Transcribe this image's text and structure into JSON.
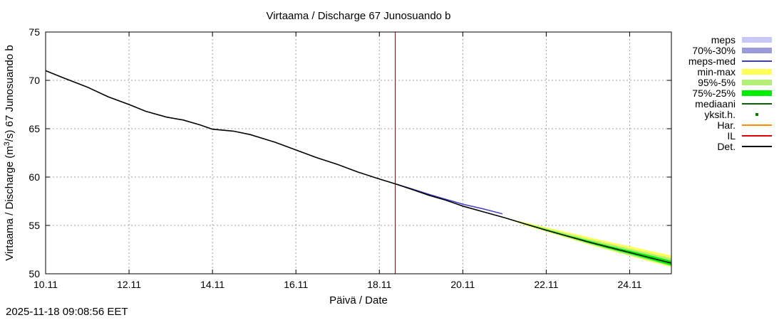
{
  "chart_data": {
    "type": "line",
    "title": "Virtaama / Discharge  67 Junosuando b",
    "xlabel": "Päivä / Date",
    "ylabel_main": "Virtaama / Discharge (m",
    "ylabel_sup": "3",
    "ylabel_rest": "/s)  67 Junosuando b",
    "x_range_days": [
      0,
      15
    ],
    "ylim": [
      50,
      75
    ],
    "grid": true,
    "x_ticks": [
      {
        "day": 0,
        "label": "10.11"
      },
      {
        "day": 2,
        "label": "12.11"
      },
      {
        "day": 4,
        "label": "14.11"
      },
      {
        "day": 6,
        "label": "16.11"
      },
      {
        "day": 8,
        "label": "18.11"
      },
      {
        "day": 10,
        "label": "20.11"
      },
      {
        "day": 12,
        "label": "22.11"
      },
      {
        "day": 14,
        "label": "24.11"
      }
    ],
    "y_ticks": [
      50,
      55,
      60,
      65,
      70,
      75
    ],
    "issue_day": 8.38,
    "observed": {
      "name": "Det.",
      "x": [
        0,
        0.4,
        1.0,
        1.5,
        2.0,
        2.4,
        2.9,
        3.3,
        3.7,
        4.0,
        4.5,
        4.9,
        5.5,
        6.0,
        6.5,
        7.0,
        7.5,
        8.0,
        8.38,
        8.8,
        9.2,
        9.6,
        10.0,
        10.5,
        11.0
      ],
      "y": [
        71.0,
        70.3,
        69.3,
        68.3,
        67.5,
        66.8,
        66.2,
        65.9,
        65.4,
        64.95,
        64.75,
        64.4,
        63.6,
        62.8,
        62.0,
        61.3,
        60.5,
        59.8,
        59.3,
        58.7,
        58.1,
        57.6,
        57.0,
        56.4,
        55.8
      ]
    },
    "meps_med": {
      "name": "meps-med",
      "x": [
        8.38,
        8.8,
        9.2,
        9.6,
        10.0,
        10.5,
        10.95
      ],
      "y": [
        59.3,
        58.75,
        58.2,
        57.7,
        57.2,
        56.7,
        56.2
      ]
    },
    "ensemble": {
      "x": [
        11.0,
        11.5,
        12.0,
        12.5,
        13.0,
        13.5,
        14.0,
        14.5,
        15.0
      ],
      "median": [
        55.8,
        55.15,
        54.5,
        53.9,
        53.3,
        52.75,
        52.2,
        51.65,
        51.1
      ],
      "q75": [
        55.8,
        55.2,
        54.6,
        54.0,
        53.45,
        52.9,
        52.4,
        51.9,
        51.35
      ],
      "q25": [
        55.8,
        55.1,
        54.45,
        53.85,
        53.2,
        52.6,
        52.05,
        51.45,
        50.85
      ],
      "p95": [
        55.8,
        55.25,
        54.7,
        54.15,
        53.6,
        53.1,
        52.6,
        52.1,
        51.6
      ],
      "p05": [
        55.8,
        55.05,
        54.4,
        53.75,
        53.1,
        52.5,
        51.9,
        51.35,
        50.75
      ],
      "max": [
        55.8,
        55.3,
        54.8,
        54.3,
        53.8,
        53.3,
        52.85,
        52.35,
        51.9
      ],
      "min": [
        55.8,
        55.0,
        54.35,
        53.7,
        53.05,
        52.45,
        51.85,
        51.25,
        50.7
      ]
    },
    "legend": [
      {
        "label": "meps",
        "kind": "band",
        "color": "#c8c8f8"
      },
      {
        "label": "70%-30%",
        "kind": "band",
        "color": "#9b9bdc"
      },
      {
        "label": "meps-med",
        "kind": "line",
        "color": "#3c3cc8"
      },
      {
        "label": "min-max",
        "kind": "band",
        "color": "#ffff55"
      },
      {
        "label": "95%-5%",
        "kind": "band",
        "color": "#b4f078"
      },
      {
        "label": "75%-25%",
        "kind": "band",
        "color": "#00ee00"
      },
      {
        "label": "mediaani",
        "kind": "line",
        "color": "#006400"
      },
      {
        "label": "yksit.h.",
        "kind": "dot",
        "color": "#008000"
      },
      {
        "label": "Har.",
        "kind": "line",
        "color": "#ff8c00"
      },
      {
        "label": "IL",
        "kind": "line",
        "color": "#dd0000"
      },
      {
        "label": "Det.",
        "kind": "line",
        "color": "#000000"
      }
    ],
    "colors": {
      "observed": "#000000",
      "issue_line": "#aa0000",
      "meps_med": "#4040cc",
      "minmax": "#ffff55",
      "p95p05": "#b4f078",
      "q75q25": "#00ee00",
      "median": "#006400",
      "grid": "#a0a0a0"
    }
  },
  "footer": {
    "timestamp": "2025-11-18 09:08:56 EET"
  }
}
